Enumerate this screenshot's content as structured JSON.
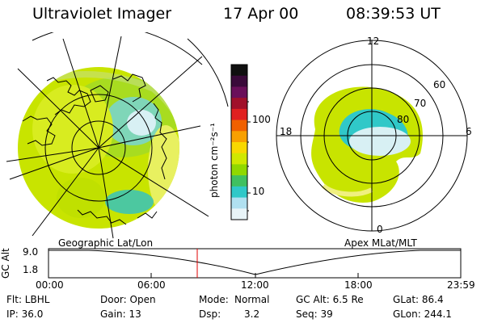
{
  "header": {
    "title": "Ultraviolet Imager",
    "date": "17 Apr 00",
    "time": "08:39:53 UT"
  },
  "colorbar": {
    "unit_label": "photon cm⁻²s⁻¹",
    "ticks": [
      "100",
      "10"
    ],
    "colors": [
      "#101010",
      "#3a0a3a",
      "#6a0f5a",
      "#a0102a",
      "#e02020",
      "#f06000",
      "#f8a000",
      "#f8d800",
      "#d0e800",
      "#90d800",
      "#40c060",
      "#30c8c8",
      "#b0e0f0",
      "#e8f4f8"
    ]
  },
  "left_panel": {
    "caption": "Geographic Lat/Lon"
  },
  "right_panel": {
    "caption": "Apex MLat/MLT",
    "mlt_labels": [
      "12",
      "18",
      "6",
      "0"
    ],
    "lat_labels": [
      "60",
      "70",
      "80"
    ]
  },
  "altitude_plot": {
    "axis_label": "GC Alt",
    "y_ticks": [
      "9.0",
      "1.8"
    ],
    "x_ticks": [
      "00:00",
      "06:00",
      "12:00",
      "18:00",
      "23:59"
    ],
    "marker_color": "#e00000"
  },
  "info": {
    "flt": "Flt: LBHL",
    "ip": "IP: 36.0",
    "door": "Door: Open",
    "gain": "Gain: 13",
    "mode_label": "Mode:",
    "mode_value": "Normal",
    "dsp_label": "Dsp:",
    "dsp_value": "3.2",
    "gcalt": "GC Alt: 6.5 Re",
    "seq": "Seq: 39",
    "glat": "GLat: 86.4",
    "glon": "GLon: 244.1"
  }
}
